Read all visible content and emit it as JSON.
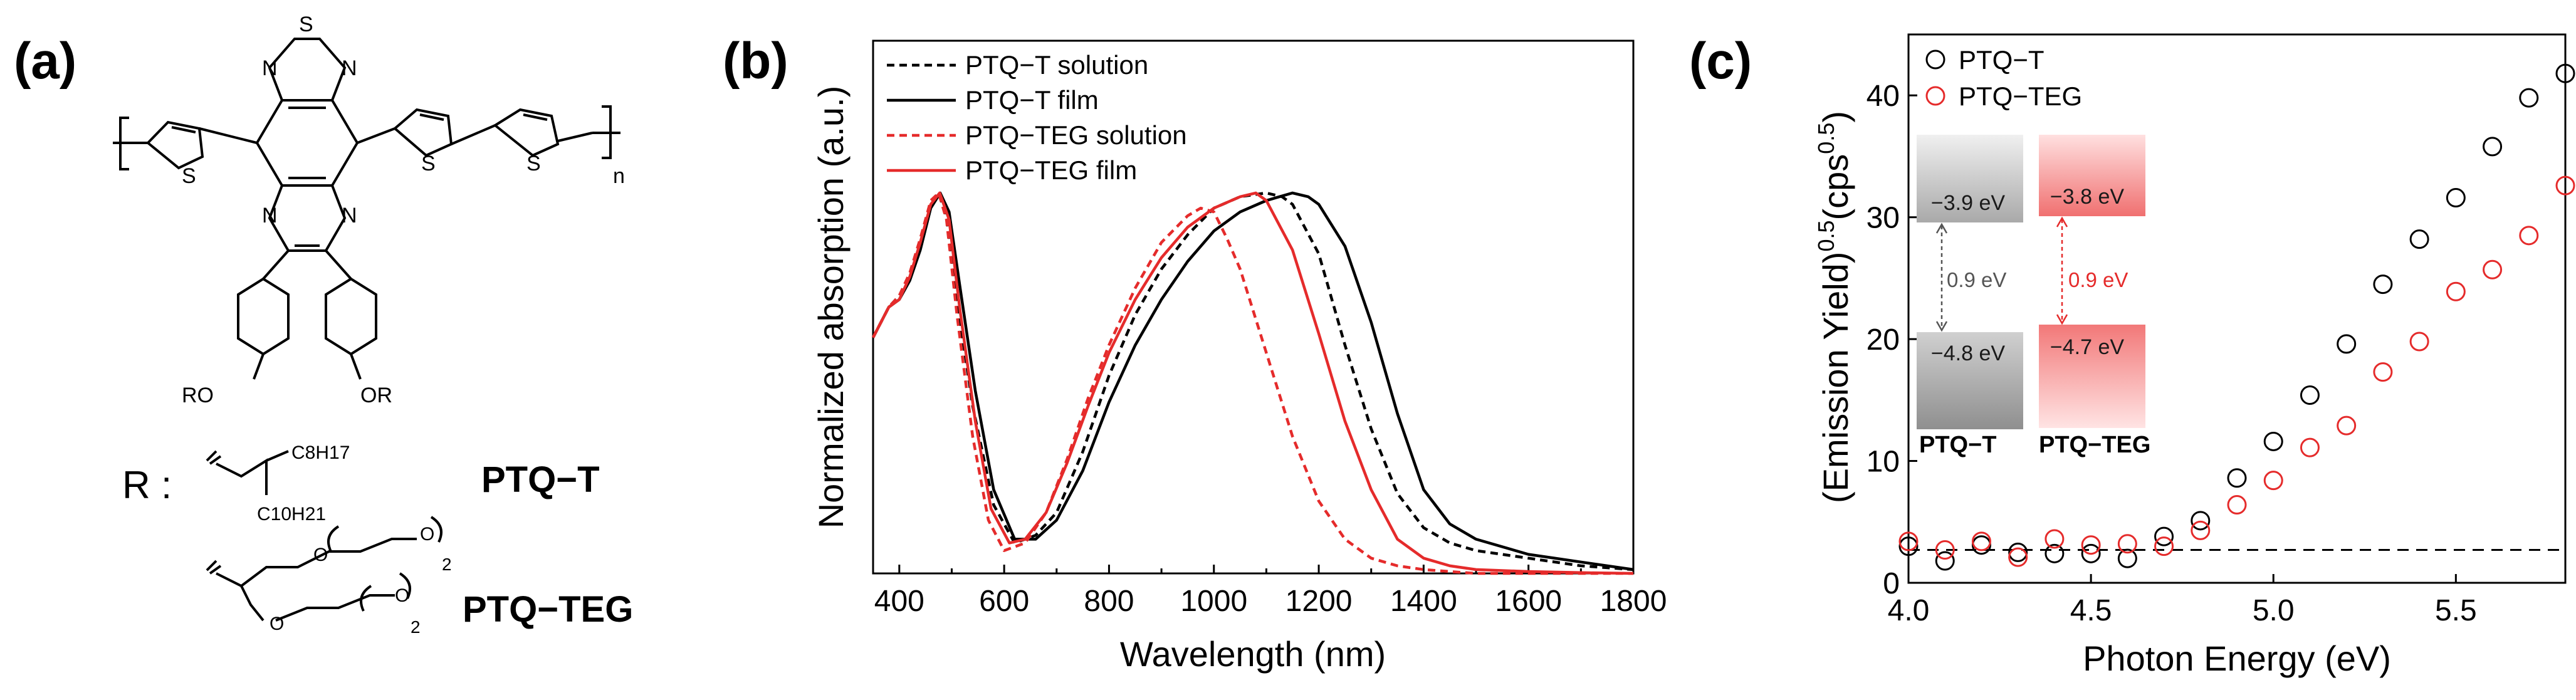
{
  "panel_labels": {
    "a": "(a)",
    "b": "(b)",
    "c": "(c)"
  },
  "chem": {
    "ring_atom_S": "S",
    "ring_atoms_N": [
      "N",
      "N",
      "N",
      "N"
    ],
    "thiophene_S": "S",
    "n_subscript": "n",
    "RO": "RO",
    "OR": "OR",
    "r_colon": "R :",
    "branch_labels": [
      "C8H17",
      "C10H21"
    ],
    "teg_O_labels": [
      "O",
      "O",
      "O",
      "O"
    ],
    "teg_repeat": "2",
    "names": [
      "PTQ−T",
      "PTQ−TEG"
    ]
  },
  "colors": {
    "black": "#000000",
    "red": "#e52b2b",
    "gray": "#555555",
    "homo_gray": "#9d9d9d",
    "lumo_red": "#f27878"
  },
  "chart_data": [
    {
      "type": "line",
      "panel": "(b)",
      "xlabel": "Wavelength (nm)",
      "ylabel": "Normalized absorption (a.u.)",
      "xlim": [
        350,
        1800
      ],
      "ylim": [
        0,
        1.4
      ],
      "xticks": [
        400,
        600,
        800,
        1000,
        1200,
        1400,
        1600,
        1800
      ],
      "legend": "top-left",
      "series": [
        {
          "name": "PTQ−T solution",
          "color": "#000000",
          "dash": true,
          "x": [
            350,
            380,
            400,
            420,
            440,
            460,
            475,
            490,
            510,
            540,
            580,
            620,
            660,
            700,
            750,
            800,
            850,
            900,
            950,
            1000,
            1050,
            1100,
            1130,
            1150,
            1200,
            1250,
            1300,
            1350,
            1400,
            1450,
            1500,
            1600,
            1700,
            1800
          ],
          "y": [
            0.62,
            0.7,
            0.73,
            0.78,
            0.86,
            0.97,
            1.0,
            0.94,
            0.72,
            0.44,
            0.18,
            0.08,
            0.1,
            0.16,
            0.32,
            0.52,
            0.68,
            0.8,
            0.89,
            0.96,
            0.99,
            1.0,
            0.99,
            0.97,
            0.84,
            0.6,
            0.38,
            0.21,
            0.12,
            0.08,
            0.06,
            0.04,
            0.02,
            0.01
          ]
        },
        {
          "name": "PTQ−T film",
          "color": "#000000",
          "dash": false,
          "x": [
            350,
            380,
            400,
            420,
            440,
            460,
            478,
            495,
            515,
            545,
            580,
            620,
            660,
            700,
            750,
            800,
            850,
            900,
            950,
            1000,
            1050,
            1100,
            1150,
            1180,
            1200,
            1250,
            1300,
            1350,
            1400,
            1450,
            1500,
            1600,
            1700,
            1800
          ],
          "y": [
            0.62,
            0.7,
            0.72,
            0.77,
            0.85,
            0.96,
            1.0,
            0.95,
            0.76,
            0.48,
            0.22,
            0.09,
            0.09,
            0.14,
            0.27,
            0.45,
            0.6,
            0.72,
            0.82,
            0.9,
            0.95,
            0.98,
            1.0,
            0.99,
            0.97,
            0.86,
            0.66,
            0.42,
            0.22,
            0.13,
            0.09,
            0.05,
            0.03,
            0.01
          ]
        },
        {
          "name": "PTQ−TEG solution",
          "color": "#e52b2b",
          "dash": true,
          "x": [
            350,
            380,
            400,
            420,
            440,
            460,
            475,
            490,
            510,
            540,
            570,
            600,
            640,
            680,
            720,
            760,
            800,
            850,
            900,
            950,
            975,
            1000,
            1025,
            1050,
            1100,
            1150,
            1200,
            1250,
            1300,
            1350,
            1400,
            1450,
            1500,
            1600,
            1700,
            1800
          ],
          "y": [
            0.62,
            0.7,
            0.73,
            0.79,
            0.88,
            0.98,
            1.0,
            0.93,
            0.68,
            0.36,
            0.14,
            0.06,
            0.08,
            0.16,
            0.3,
            0.46,
            0.6,
            0.75,
            0.87,
            0.94,
            0.96,
            0.95,
            0.88,
            0.8,
            0.58,
            0.36,
            0.19,
            0.09,
            0.04,
            0.02,
            0.01,
            0.005,
            0,
            0,
            0,
            0
          ]
        },
        {
          "name": "PTQ−TEG film",
          "color": "#e52b2b",
          "dash": false,
          "x": [
            350,
            380,
            400,
            420,
            440,
            460,
            477,
            495,
            515,
            545,
            575,
            610,
            640,
            680,
            720,
            760,
            800,
            850,
            900,
            950,
            1000,
            1050,
            1080,
            1100,
            1150,
            1200,
            1250,
            1300,
            1350,
            1400,
            1450,
            1500,
            1600,
            1700,
            1800
          ],
          "y": [
            0.62,
            0.7,
            0.72,
            0.78,
            0.87,
            0.97,
            1.0,
            0.93,
            0.7,
            0.4,
            0.17,
            0.08,
            0.09,
            0.16,
            0.29,
            0.44,
            0.58,
            0.72,
            0.83,
            0.91,
            0.96,
            0.99,
            1.0,
            0.98,
            0.85,
            0.63,
            0.4,
            0.22,
            0.09,
            0.04,
            0.02,
            0.01,
            0.005,
            0.002,
            0
          ]
        }
      ]
    },
    {
      "type": "scatter",
      "panel": "(c)",
      "xlabel": "Photon Energy (eV)",
      "ylabel_main": "(Emission Yield)",
      "ylabel_sup1": "0.5",
      "ylabel_mid": "(cps",
      "ylabel_sup2": "0.5",
      "ylabel_end": ")",
      "xlim": [
        4.0,
        5.8
      ],
      "ylim": [
        0,
        45
      ],
      "xticks": [
        "4.0",
        "4.5",
        "5.0",
        "5.5"
      ],
      "yticks": [
        "0",
        "10",
        "20",
        "30",
        "40"
      ],
      "baseline": 2.7,
      "legend": "top-left",
      "series": [
        {
          "name": "PTQ−T",
          "color": "#000000",
          "x": [
            4.0,
            4.1,
            4.2,
            4.3,
            4.4,
            4.5,
            4.6,
            4.7,
            4.8,
            4.9,
            5.0,
            5.1,
            5.2,
            5.3,
            5.4,
            5.5,
            5.6,
            5.7,
            5.8
          ],
          "y": [
            3.0,
            1.8,
            3.1,
            2.5,
            2.4,
            2.4,
            2.0,
            3.8,
            5.1,
            8.6,
            11.6,
            15.4,
            19.6,
            24.5,
            28.2,
            31.6,
            35.8,
            39.8,
            41.8
          ]
        },
        {
          "name": "PTQ−TEG",
          "color": "#e52b2b",
          "x": [
            4.0,
            4.1,
            4.2,
            4.3,
            4.4,
            4.5,
            4.6,
            4.7,
            4.8,
            4.9,
            5.0,
            5.1,
            5.2,
            5.3,
            5.4,
            5.5,
            5.6,
            5.7,
            5.8
          ],
          "y": [
            3.4,
            2.7,
            3.4,
            2.1,
            3.6,
            3.1,
            3.2,
            3.0,
            4.3,
            6.4,
            8.4,
            11.1,
            12.9,
            17.3,
            19.8,
            23.9,
            25.7,
            28.5,
            32.6
          ]
        }
      ],
      "inset": {
        "gray_lumo": "−3.9 eV",
        "gray_homo": "−4.8 eV",
        "gray_gap": "0.9 eV",
        "red_lumo": "−3.8 eV",
        "red_homo": "−4.7 eV",
        "red_gap": "0.9 eV",
        "labels": [
          "PTQ−T",
          "PTQ−TEG"
        ]
      }
    }
  ]
}
